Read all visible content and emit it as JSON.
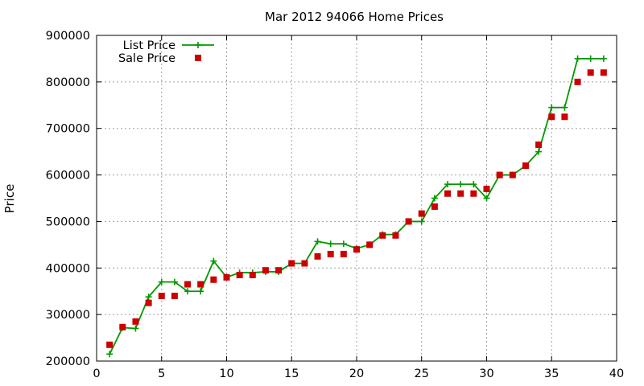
{
  "chart_data": {
    "type": "line",
    "title": "Mar 2012 94066 Home Prices",
    "xlabel": "",
    "ylabel": "Price",
    "xlim": [
      0,
      40
    ],
    "ylim": [
      200000,
      900000
    ],
    "x_ticks": [
      0,
      5,
      10,
      15,
      20,
      25,
      30,
      35,
      40
    ],
    "y_ticks": [
      200000,
      300000,
      400000,
      500000,
      600000,
      700000,
      800000,
      900000
    ],
    "grid": true,
    "legend_position": "top-left",
    "series": [
      {
        "name": "List Price",
        "style": "line-with-plus-markers",
        "color": "#009900",
        "points": [
          [
            1,
            215000
          ],
          [
            2,
            272000
          ],
          [
            3,
            270000
          ],
          [
            4,
            338000
          ],
          [
            5,
            370000
          ],
          [
            6,
            370000
          ],
          [
            7,
            350000
          ],
          [
            8,
            350000
          ],
          [
            9,
            415000
          ],
          [
            10,
            380000
          ],
          [
            11,
            390000
          ],
          [
            12,
            390000
          ],
          [
            13,
            392000
          ],
          [
            14,
            392000
          ],
          [
            15,
            410000
          ],
          [
            16,
            410000
          ],
          [
            17,
            457000
          ],
          [
            18,
            452000
          ],
          [
            19,
            452000
          ],
          [
            20,
            442000
          ],
          [
            21,
            450000
          ],
          [
            22,
            472000
          ],
          [
            23,
            472000
          ],
          [
            24,
            500000
          ],
          [
            25,
            500000
          ],
          [
            26,
            550000
          ],
          [
            27,
            580000
          ],
          [
            28,
            580000
          ],
          [
            29,
            580000
          ],
          [
            30,
            550000
          ],
          [
            31,
            600000
          ],
          [
            32,
            600000
          ],
          [
            33,
            620000
          ],
          [
            34,
            650000
          ],
          [
            35,
            745000
          ],
          [
            36,
            745000
          ],
          [
            37,
            850000
          ],
          [
            38,
            850000
          ],
          [
            39,
            850000
          ]
        ]
      },
      {
        "name": "Sale Price",
        "style": "square-markers",
        "color": "#cc0000",
        "points": [
          [
            1,
            235000
          ],
          [
            2,
            273000
          ],
          [
            3,
            285000
          ],
          [
            4,
            325000
          ],
          [
            5,
            340000
          ],
          [
            6,
            340000
          ],
          [
            7,
            365000
          ],
          [
            8,
            365000
          ],
          [
            9,
            375000
          ],
          [
            10,
            380000
          ],
          [
            11,
            385000
          ],
          [
            12,
            385000
          ],
          [
            13,
            395000
          ],
          [
            14,
            395000
          ],
          [
            15,
            410000
          ],
          [
            16,
            410000
          ],
          [
            17,
            425000
          ],
          [
            18,
            430000
          ],
          [
            19,
            430000
          ],
          [
            20,
            440000
          ],
          [
            21,
            450000
          ],
          [
            22,
            470000
          ],
          [
            23,
            470000
          ],
          [
            24,
            500000
          ],
          [
            25,
            517000
          ],
          [
            26,
            532000
          ],
          [
            27,
            560000
          ],
          [
            28,
            560000
          ],
          [
            29,
            560000
          ],
          [
            30,
            570000
          ],
          [
            31,
            600000
          ],
          [
            32,
            600000
          ],
          [
            33,
            620000
          ],
          [
            34,
            665000
          ],
          [
            35,
            725000
          ],
          [
            36,
            725000
          ],
          [
            37,
            800000
          ],
          [
            38,
            820000
          ],
          [
            39,
            820000
          ]
        ]
      }
    ]
  }
}
